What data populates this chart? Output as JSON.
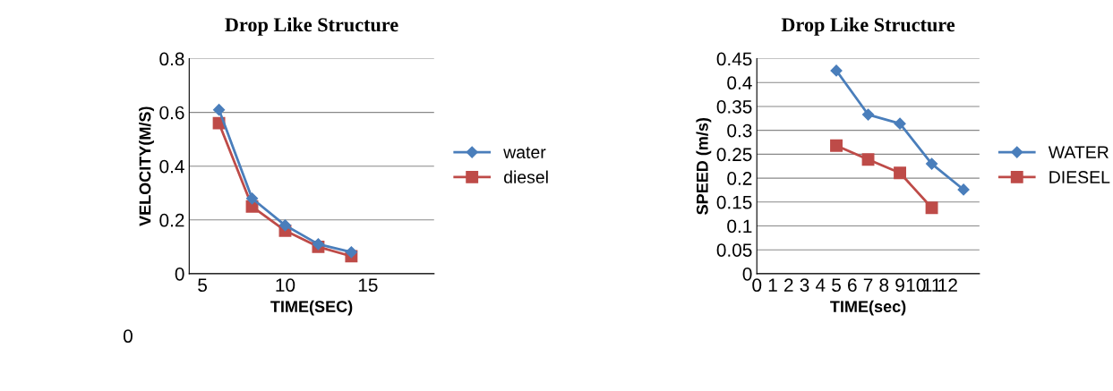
{
  "chart_data": [
    {
      "type": "line",
      "title": "Drop Like Structure",
      "xlabel": "TIME(SEC)",
      "ylabel": "VELOCITY(M/S)",
      "x": [
        6,
        8,
        10,
        12,
        14
      ],
      "xlim": [
        4.2,
        19
      ],
      "xticks": [
        5,
        10,
        15
      ],
      "ylim": [
        0,
        0.8
      ],
      "yticks": [
        0,
        0.2,
        0.4,
        0.6,
        0.8
      ],
      "grid": "y",
      "legend": "right",
      "annotations": [
        "0"
      ],
      "series": [
        {
          "name": "water",
          "color": "#4a7ebb",
          "marker": "diamond",
          "values": [
            0.61,
            0.28,
            0.18,
            0.11,
            0.08
          ]
        },
        {
          "name": "diesel",
          "color": "#be4b48",
          "marker": "square",
          "values": [
            0.56,
            0.25,
            0.16,
            0.1,
            0.065
          ]
        }
      ]
    },
    {
      "type": "line",
      "title": "Drop Like Structure",
      "xlabel": "TIME(sec)",
      "ylabel": "SPEED (m/s)",
      "x": [
        5,
        7,
        9,
        11,
        13
      ],
      "xlim": [
        0,
        14
      ],
      "xticks": [
        0,
        1,
        2,
        3,
        4,
        5,
        6,
        7,
        8,
        9,
        10,
        11,
        12
      ],
      "ylim": [
        0,
        0.45
      ],
      "yticks": [
        0,
        0.05,
        0.1,
        0.15,
        0.2,
        0.25,
        0.3,
        0.35,
        0.4,
        0.45
      ],
      "grid": "y",
      "legend": "right",
      "series": [
        {
          "name": "WATER",
          "color": "#4a7ebb",
          "marker": "diamond",
          "values": [
            0.425,
            0.333,
            0.314,
            0.23,
            0.176
          ]
        },
        {
          "name": "DIESEL",
          "color": "#be4b48",
          "marker": "square",
          "values": [
            0.268,
            0.239,
            0.211,
            0.138,
            null
          ]
        }
      ]
    }
  ]
}
